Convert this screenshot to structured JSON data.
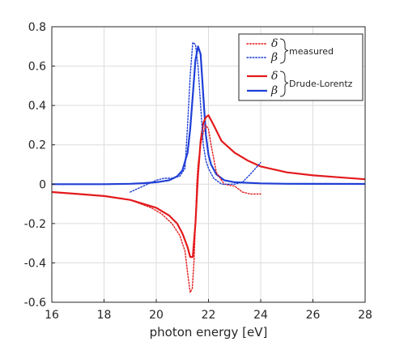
{
  "chart_data": {
    "type": "line",
    "xlabel": "photon energy [eV]",
    "ylabel": "",
    "xlim": [
      16,
      28
    ],
    "ylim": [
      -0.6,
      0.8
    ],
    "xticks": [
      16,
      18,
      20,
      22,
      24,
      26,
      28
    ],
    "yticks": [
      -0.6,
      -0.4,
      -0.2,
      0,
      0.2,
      0.4,
      0.6,
      0.8
    ],
    "xtick_labels": [
      "16",
      "18",
      "20",
      "22",
      "24",
      "26",
      "28"
    ],
    "ytick_labels": [
      "-0.6",
      "-0.4",
      "-0.2",
      "0",
      "0.2",
      "0.4",
      "0.6",
      "0.8"
    ],
    "grid": true,
    "legend_position": "top-right",
    "legend": {
      "groups": [
        {
          "label": "measured",
          "symbols": [
            "δ",
            "β"
          ]
        },
        {
          "label": "Drude-Lorentz",
          "symbols": [
            "δ",
            "β"
          ]
        }
      ]
    },
    "series": [
      {
        "name": "δ measured",
        "group": "measured",
        "color": "#e31a1c",
        "style": "dotted",
        "x": [
          19,
          19.4,
          19.8,
          20.2,
          20.6,
          20.9,
          21.1,
          21.2,
          21.3,
          21.38,
          21.45,
          21.5,
          21.55,
          21.6,
          21.7,
          21.8,
          21.9,
          22.0,
          22.1,
          22.3,
          22.6,
          23.0,
          23.3,
          23.6,
          24.0
        ],
        "y": [
          -0.08,
          -0.1,
          -0.12,
          -0.15,
          -0.2,
          -0.26,
          -0.34,
          -0.45,
          -0.55,
          -0.53,
          -0.38,
          -0.2,
          0.0,
          0.1,
          0.2,
          0.26,
          0.3,
          0.28,
          0.2,
          0.06,
          0.0,
          -0.01,
          -0.04,
          -0.05,
          -0.05
        ]
      },
      {
        "name": "β measured",
        "group": "measured",
        "color": "#1f3fd6",
        "style": "dotted",
        "x": [
          19,
          19.5,
          20.0,
          20.3,
          20.6,
          20.9,
          21.1,
          21.2,
          21.3,
          21.4,
          21.5,
          21.6,
          21.7,
          21.8,
          21.9,
          22.0,
          22.2,
          22.5,
          23.0,
          23.3,
          23.6,
          24.0
        ],
        "y": [
          -0.04,
          -0.01,
          0.02,
          0.03,
          0.03,
          0.04,
          0.08,
          0.3,
          0.55,
          0.72,
          0.71,
          0.6,
          0.4,
          0.2,
          0.12,
          0.08,
          0.03,
          0.0,
          0.0,
          0.01,
          0.05,
          0.11
        ]
      },
      {
        "name": "δ Drude-Lorentz",
        "group": "Drude-Lorentz",
        "color": "#e31a1c",
        "style": "solid",
        "x": [
          16,
          17,
          18,
          19,
          19.5,
          20,
          20.5,
          20.8,
          21.0,
          21.2,
          21.3,
          21.4,
          21.5,
          21.6,
          21.7,
          21.8,
          21.9,
          22.0,
          22.2,
          22.5,
          23.0,
          23.5,
          24.0,
          25.0,
          26.0,
          27.0,
          28.0
        ],
        "y": [
          -0.04,
          -0.05,
          -0.06,
          -0.08,
          -0.1,
          -0.12,
          -0.16,
          -0.2,
          -0.25,
          -0.32,
          -0.37,
          -0.37,
          -0.2,
          0.05,
          0.22,
          0.31,
          0.34,
          0.35,
          0.3,
          0.22,
          0.16,
          0.12,
          0.09,
          0.06,
          0.045,
          0.035,
          0.025
        ]
      },
      {
        "name": "β Drude-Lorentz",
        "group": "Drude-Lorentz",
        "color": "#1f3fd6",
        "style": "solid",
        "x": [
          16,
          17,
          18,
          19,
          19.5,
          20,
          20.5,
          20.8,
          21.0,
          21.2,
          21.3,
          21.4,
          21.5,
          21.6,
          21.7,
          21.8,
          21.9,
          22.0,
          22.1,
          22.3,
          22.6,
          23.0,
          24.0,
          25.0,
          28.0
        ],
        "y": [
          0,
          0,
          0,
          0.002,
          0.005,
          0.01,
          0.02,
          0.04,
          0.07,
          0.16,
          0.28,
          0.45,
          0.63,
          0.7,
          0.66,
          0.45,
          0.25,
          0.15,
          0.1,
          0.05,
          0.02,
          0.01,
          0.004,
          0.002,
          0.001
        ]
      }
    ]
  }
}
